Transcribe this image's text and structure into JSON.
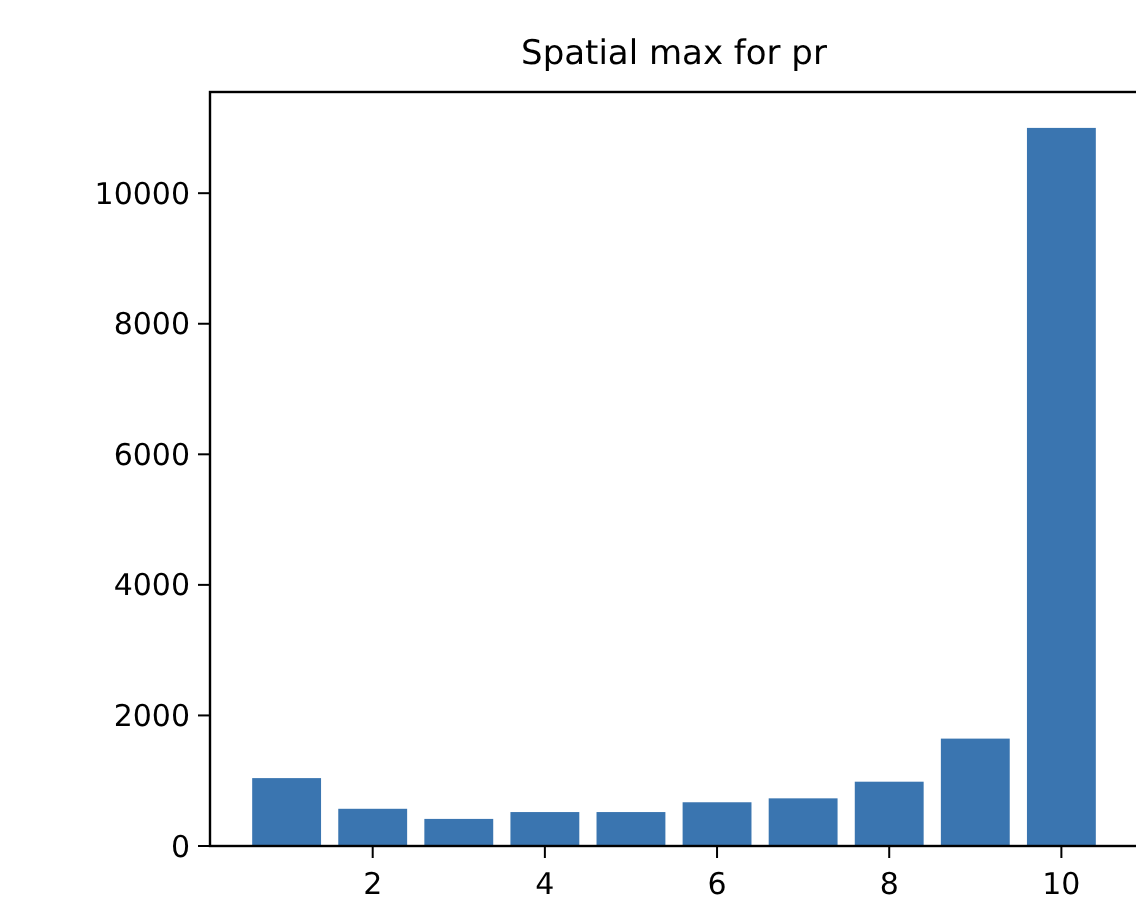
{
  "chart_data": {
    "type": "bar",
    "title": "Spatial max for pr",
    "x": [
      1,
      2,
      3,
      4,
      5,
      6,
      7,
      8,
      9,
      10
    ],
    "values": [
      1040,
      570,
      415,
      520,
      520,
      670,
      730,
      985,
      1645,
      11000
    ],
    "color": "#3a75b0",
    "xlim": [
      0.11,
      10.89
    ],
    "xticks": [
      2,
      4,
      6,
      8,
      10
    ],
    "ylim": [
      0,
      11550
    ],
    "yticks": [
      0,
      2000,
      4000,
      6000,
      8000,
      10000
    ]
  }
}
